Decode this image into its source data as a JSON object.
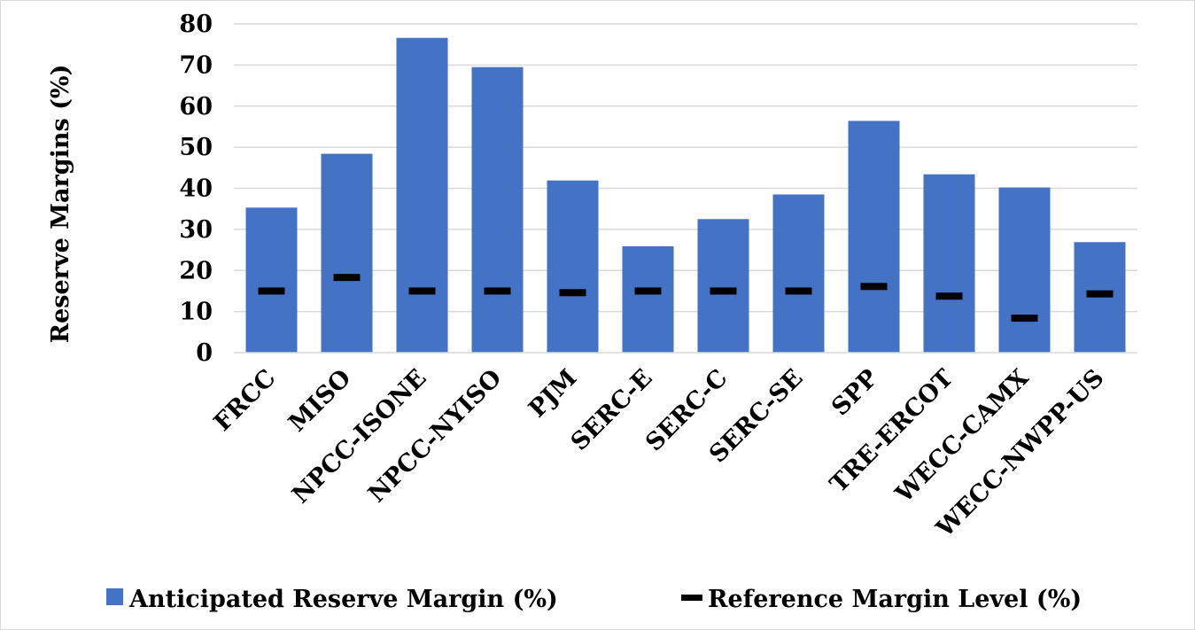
{
  "chart_data": {
    "type": "bar",
    "title": "",
    "xlabel": "",
    "ylabel": "Reserve Margins (%)",
    "ylim": [
      0,
      80
    ],
    "yticks": [
      0,
      10,
      20,
      30,
      40,
      50,
      60,
      70,
      80
    ],
    "grid": true,
    "legend_position": "bottom",
    "categories": [
      "FRCC",
      "MISO",
      "NPCC-ISONE",
      "NPCC-NYISO",
      "PJM",
      "SERC-E",
      "SERC-C",
      "SERC-SE",
      "SPP",
      "TRE-ERCOT",
      "WECC-CAMX",
      "WECC-NWPP-US"
    ],
    "series": [
      {
        "name": "Anticipated Reserve Margin (%)",
        "kind": "bar",
        "color": "#4472c4",
        "values": [
          35.3,
          48.4,
          76.6,
          69.5,
          41.9,
          25.9,
          32.5,
          38.5,
          56.4,
          43.4,
          40.2,
          26.9
        ]
      },
      {
        "name": "Reference Margin Level (%)",
        "kind": "marker",
        "color": "#000000",
        "values": [
          15.0,
          18.3,
          15.0,
          15.0,
          14.6,
          15.0,
          15.0,
          15.0,
          16.1,
          13.75,
          8.4,
          14.3
        ]
      }
    ]
  }
}
